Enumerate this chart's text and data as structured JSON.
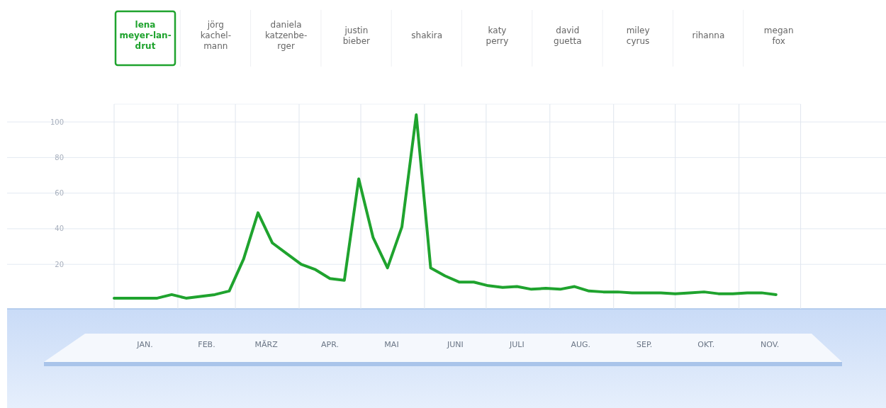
{
  "chart_data": {
    "type": "line",
    "x": [
      "--01-01",
      "--01-08",
      "--01-15",
      "--01-22",
      "--01-29",
      "--02-05",
      "--02-12",
      "--02-19",
      "--02-26",
      "--03-05",
      "--03-12",
      "--03-19",
      "--03-26",
      "--04-02",
      "--04-09",
      "--04-16",
      "--04-23",
      "--04-30",
      "--05-07",
      "--05-14",
      "--05-21",
      "--05-28",
      "--06-04",
      "--06-11",
      "--06-18",
      "--06-25",
      "--07-02",
      "--07-09",
      "--07-16",
      "--07-23",
      "--07-30",
      "--08-06",
      "--08-13",
      "--08-20",
      "--08-27",
      "--09-03",
      "--09-10",
      "--09-17",
      "--09-24",
      "--10-01",
      "--10-08",
      "--10-15",
      "--10-22",
      "--10-29",
      "--11-05",
      "--11-12",
      "--11-19"
    ],
    "series": [
      {
        "name": "lena\nmeyer-lan-\ndrut",
        "color": "#1fa32e",
        "values": [
          1,
          1,
          1,
          1,
          3,
          1,
          2,
          3,
          5,
          23,
          49,
          32,
          26,
          20,
          17,
          12,
          11,
          68,
          35,
          18,
          41,
          104,
          18,
          13.5,
          10,
          10,
          8,
          7,
          7.5,
          6,
          6.5,
          6,
          7.5,
          5,
          4.5,
          4.5,
          4,
          4,
          4,
          3.5,
          4,
          4.5,
          3.5,
          3.5,
          4,
          4,
          3
        ]
      }
    ],
    "annotations": [
      "jörg\nkachel-\nmann",
      "daniela\nkatzenbe-\nrger",
      "justin\nbieber",
      "shakira",
      "katy\nperry",
      "david\nguetta",
      "miley\ncyrus",
      "rihanna",
      "megan\nfox"
    ],
    "xlim": [
      "--01-01",
      "--12-01"
    ],
    "xticks": [
      {
        "value": "--01-01",
        "label": null
      },
      {
        "value": "--01-16",
        "label": "JAN."
      },
      {
        "value": "--02-01",
        "label": null
      },
      {
        "value": "--02-15",
        "label": "FEB."
      },
      {
        "value": "--03-01",
        "label": null
      },
      {
        "value": "--03-16",
        "label": "MÄRZ"
      },
      {
        "value": "--04-01",
        "label": null
      },
      {
        "value": "--04-16",
        "label": "APR."
      },
      {
        "value": "--05-01",
        "label": null
      },
      {
        "value": "--05-16",
        "label": "MAI"
      },
      {
        "value": "--06-01",
        "label": null
      },
      {
        "value": "--06-16",
        "label": "JUNI"
      },
      {
        "value": "--07-01",
        "label": null
      },
      {
        "value": "--07-16",
        "label": "JULI"
      },
      {
        "value": "--08-01",
        "label": null
      },
      {
        "value": "--08-16",
        "label": "AUG."
      },
      {
        "value": "--09-01",
        "label": null
      },
      {
        "value": "--09-16",
        "label": "SEP."
      },
      {
        "value": "--10-01",
        "label": null
      },
      {
        "value": "--10-16",
        "label": "OKT."
      },
      {
        "value": "--11-01",
        "label": null
      },
      {
        "value": "--11-16",
        "label": "NOV."
      },
      {
        "value": "--12-01",
        "label": null
      }
    ],
    "ylim": [
      -5,
      110
    ],
    "yticks": [
      20,
      40,
      60,
      80,
      100
    ],
    "grid": true,
    "legend": "top",
    "marker": "none",
    "line_style": "solid"
  }
}
